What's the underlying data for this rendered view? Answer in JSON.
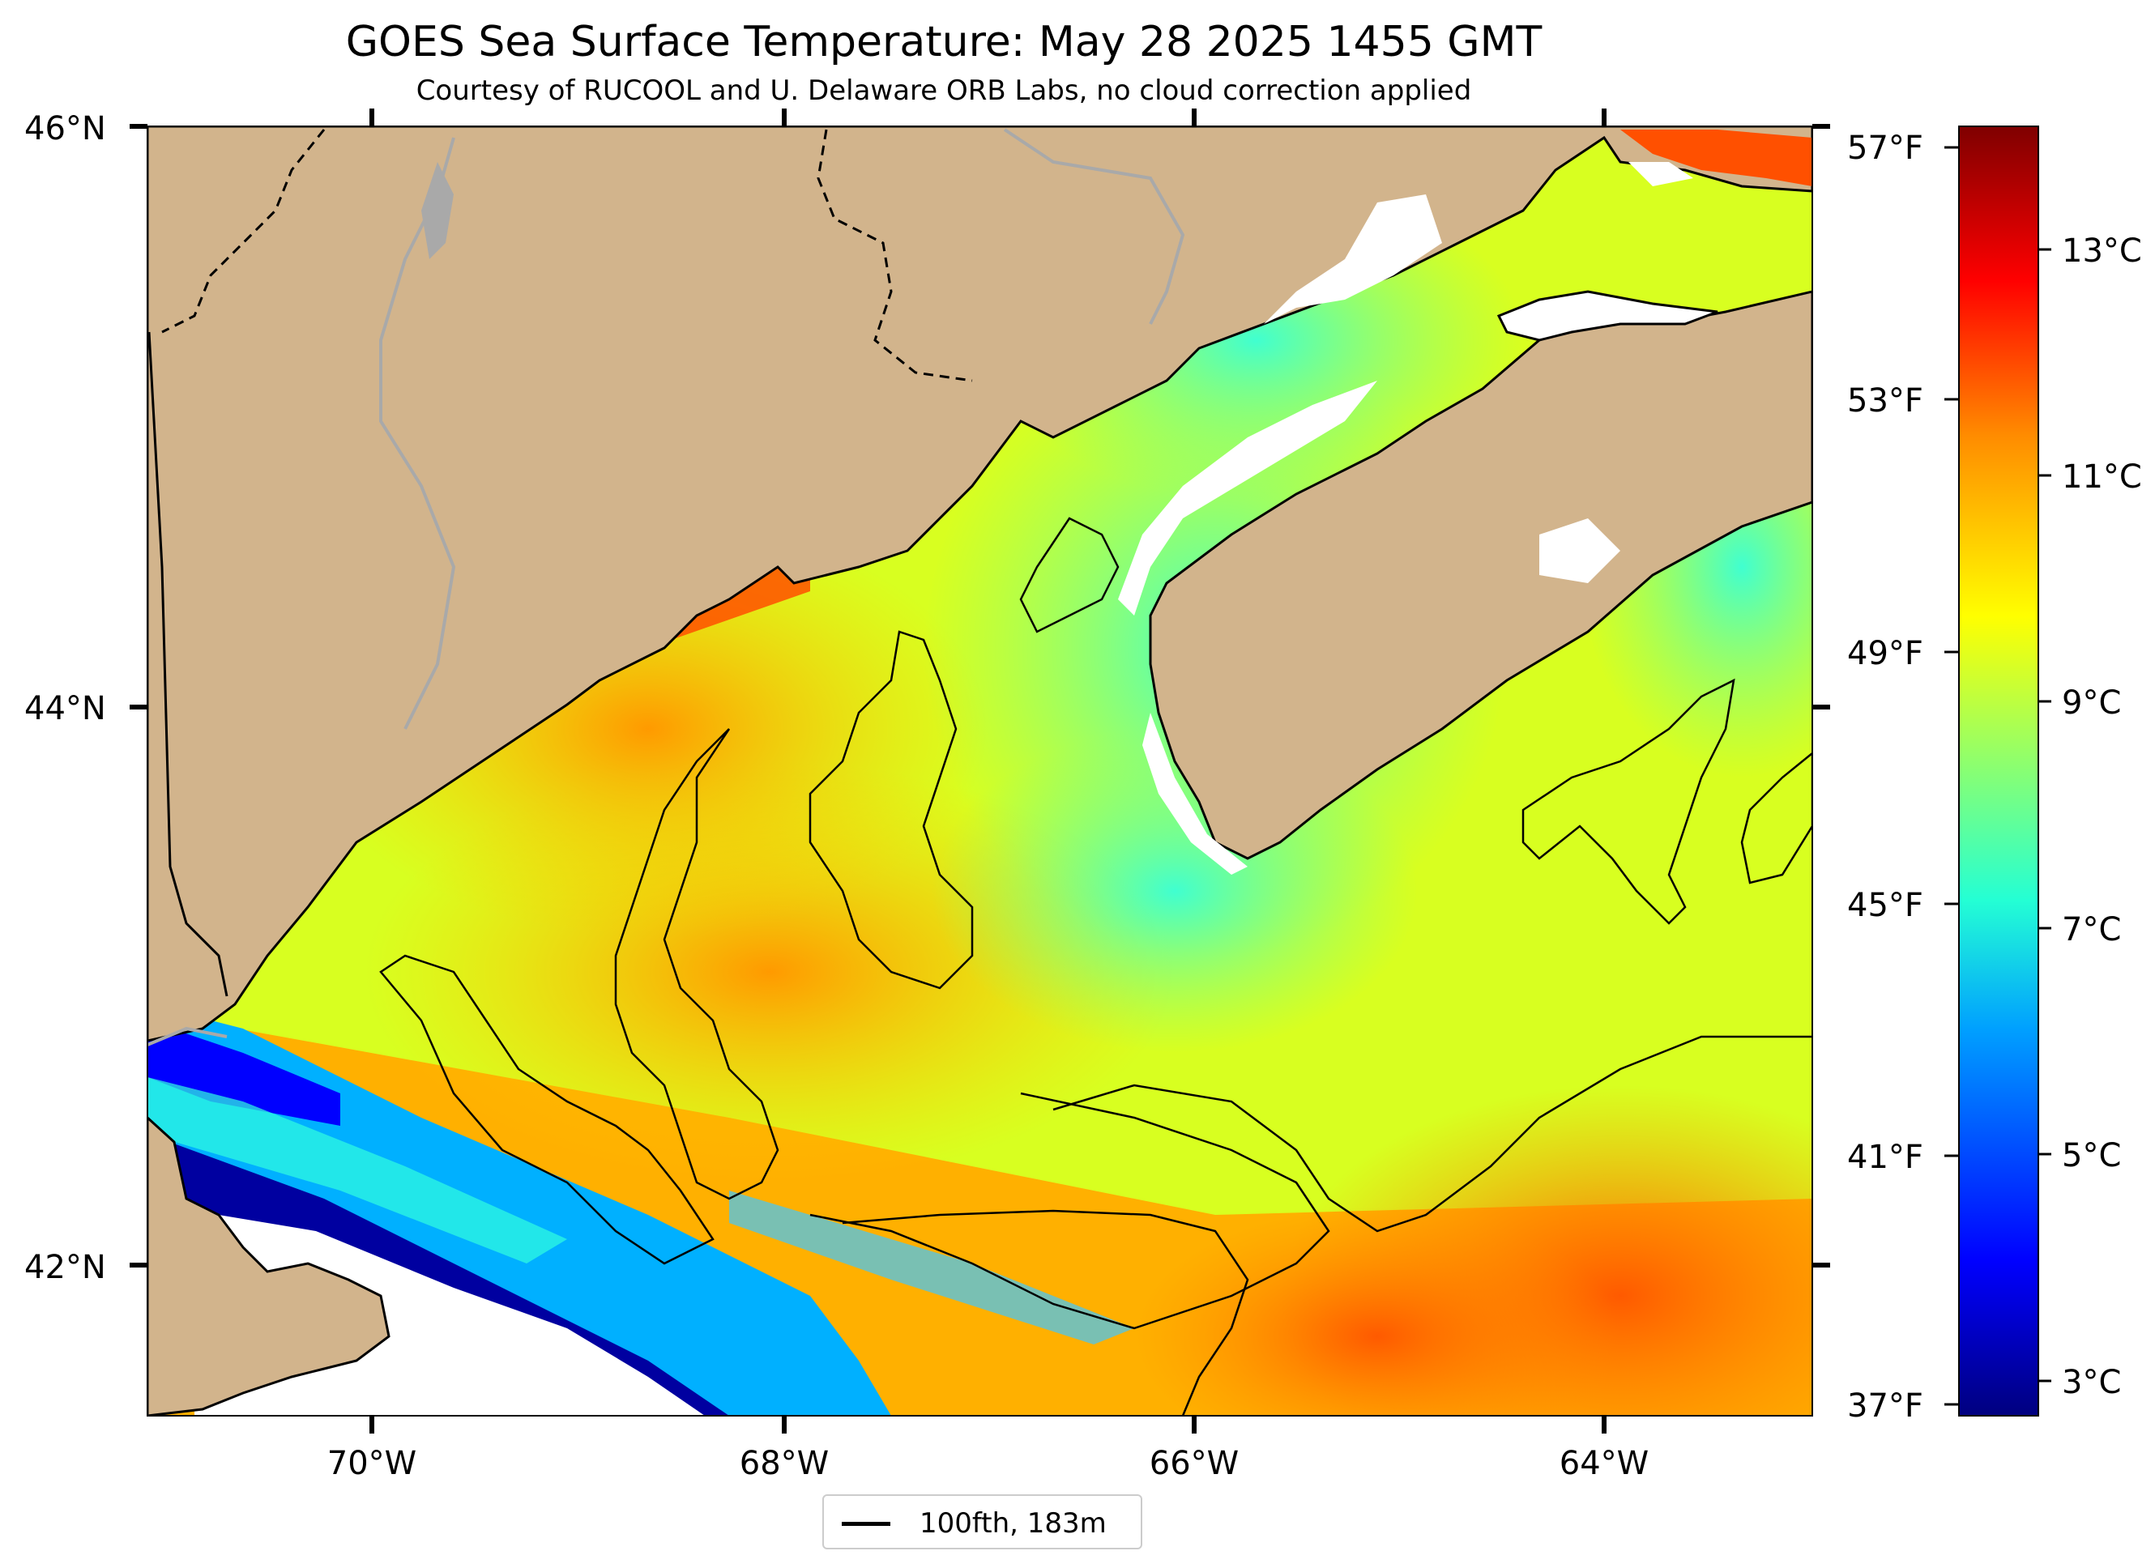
{
  "title": "GOES Sea Surface Temperature: May 28 2025 1455 GMT",
  "subtitle": "Courtesy of RUCOOL and U. Delaware ORB Labs, no cloud correction applied",
  "legend": {
    "label": "100fth, 183m"
  },
  "axes": {
    "lat_ticks": [
      "46°N",
      "44°N",
      "42°N"
    ],
    "lon_ticks": [
      "70°W",
      "68°W",
      "66°W",
      "64°W"
    ],
    "f_ticks": [
      "57°F",
      "53°F",
      "49°F",
      "45°F",
      "41°F",
      "37°F"
    ],
    "c_ticks": [
      "13°C",
      "11°C",
      "9°C",
      "7°C",
      "5°C",
      "3°C"
    ]
  },
  "colorbar": {
    "colormap": "jet",
    "stops": [
      "#00007f",
      "#0000ff",
      "#00a0ff",
      "#24ffd4",
      "#ffff00",
      "#ff8c00",
      "#ff0000",
      "#7f0000"
    ]
  },
  "colors": {
    "land": "#d2b48c",
    "rivers": "#a9a9a9",
    "coastline": "#000000",
    "no_data": "#ffffff"
  }
}
